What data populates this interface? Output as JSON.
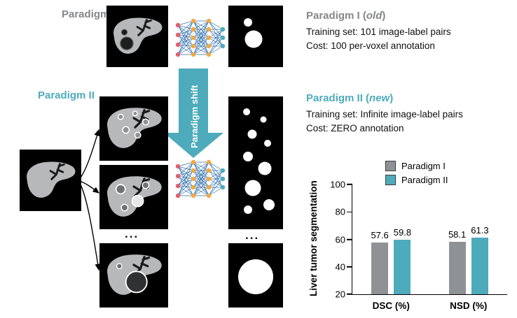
{
  "palette": {
    "teal": "#4EABBC",
    "gray_bar": "#8F9294",
    "gray_text": "#85878A",
    "node_red": "#E0606E",
    "node_orange": "#F4A93C",
    "edge_blue": "#2E6FAC"
  },
  "diagram": {
    "paradigm1_label": "Paradigm I",
    "paradigm2_label": "Paradigm II",
    "arrow_label": "Paradigm shift",
    "ellipsis": "...",
    "icons": {
      "network": "neural-network-icon",
      "arrow": "paradigm-shift-arrow-icon",
      "liver": "liver-ct-image-icon",
      "mask": "tumor-mask-image-icon"
    }
  },
  "info1": {
    "title_prefix": "Paradigm I (",
    "title_em": "old",
    "title_suffix": ")",
    "line1": "Training set: 101 image-label pairs",
    "line2": "Cost: 100 per-voxel annotation"
  },
  "info2": {
    "title_prefix": "Paradigm II (",
    "title_em": "new",
    "title_suffix": ")",
    "line1": "Training set: Infinite image-label pairs",
    "line2": "Cost: ZERO annotation"
  },
  "chart_data": {
    "type": "bar",
    "categories": [
      "DSC (%)",
      "NSD (%)"
    ],
    "series": [
      {
        "name": "Paradigm I",
        "color": "#8F9294",
        "values": [
          57.6,
          58.1
        ]
      },
      {
        "name": "Paradigm II",
        "color": "#4EABBC",
        "values": [
          59.8,
          61.3
        ]
      }
    ],
    "ylabel": "Liver tumor segmentation",
    "ylim": [
      20,
      100
    ],
    "yticks": [
      20,
      40,
      60,
      80,
      100
    ],
    "legend_position": "top",
    "grid": false
  }
}
